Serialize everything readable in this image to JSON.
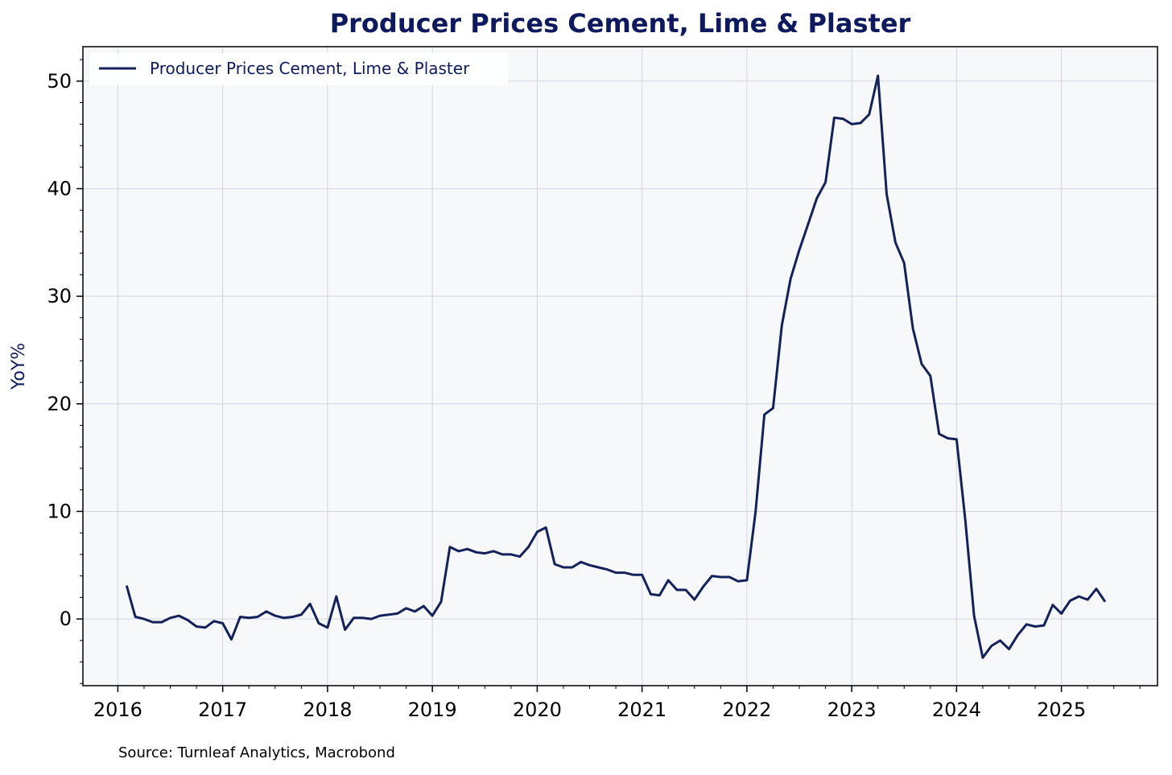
{
  "chart_data": {
    "type": "line",
    "title": "Producer Prices Cement, Lime & Plaster",
    "xlabel": "",
    "ylabel": "YoY%",
    "xlim": [
      "2015-09",
      "2025-12"
    ],
    "ylim": [
      -6.2,
      53.2
    ],
    "x_ticks": [
      "2016",
      "2017",
      "2018",
      "2019",
      "2020",
      "2021",
      "2022",
      "2023",
      "2024",
      "2025"
    ],
    "y_ticks": [
      0,
      10,
      20,
      30,
      40,
      50
    ],
    "grid": true,
    "legend_position": "top-left",
    "colors": {
      "line": "#14215a",
      "plot_bg": "#f6f8fa",
      "grid": "#d0d5e0",
      "title": "#0f1a5e",
      "legend_text": "#0f1a5e"
    },
    "series": [
      {
        "name": "Producer Prices Cement, Lime & Plaster",
        "x": [
          "2016-02",
          "2016-03",
          "2016-04",
          "2016-05",
          "2016-06",
          "2016-07",
          "2016-08",
          "2016-09",
          "2016-10",
          "2016-11",
          "2016-12",
          "2017-01",
          "2017-02",
          "2017-03",
          "2017-04",
          "2017-05",
          "2017-06",
          "2017-07",
          "2017-08",
          "2017-09",
          "2017-10",
          "2017-11",
          "2017-12",
          "2018-01",
          "2018-02",
          "2018-03",
          "2018-04",
          "2018-05",
          "2018-06",
          "2018-07",
          "2018-08",
          "2018-09",
          "2018-10",
          "2018-11",
          "2018-12",
          "2019-01",
          "2019-02",
          "2019-03",
          "2019-04",
          "2019-05",
          "2019-06",
          "2019-07",
          "2019-08",
          "2019-09",
          "2019-10",
          "2019-11",
          "2019-12",
          "2020-01",
          "2020-02",
          "2020-03",
          "2020-04",
          "2020-05",
          "2020-06",
          "2020-07",
          "2020-08",
          "2020-09",
          "2020-10",
          "2020-11",
          "2020-12",
          "2021-01",
          "2021-02",
          "2021-03",
          "2021-04",
          "2021-05",
          "2021-06",
          "2021-07",
          "2021-08",
          "2021-09",
          "2021-10",
          "2021-11",
          "2021-12",
          "2022-01",
          "2022-02",
          "2022-03",
          "2022-04",
          "2022-05",
          "2022-06",
          "2022-07",
          "2022-08",
          "2022-09",
          "2022-10",
          "2022-11",
          "2022-12",
          "2023-01",
          "2023-02",
          "2023-03",
          "2023-04",
          "2023-05",
          "2023-06",
          "2023-07",
          "2023-08",
          "2023-09",
          "2023-10",
          "2023-11",
          "2023-12",
          "2024-01",
          "2024-02",
          "2024-03",
          "2024-04",
          "2024-05",
          "2024-06",
          "2024-07",
          "2024-08",
          "2024-09",
          "2024-10",
          "2024-11",
          "2024-12",
          "2025-01",
          "2025-02",
          "2025-03",
          "2025-04",
          "2025-05",
          "2025-06"
        ],
        "values": [
          3.1,
          0.2,
          0.0,
          -0.3,
          -0.3,
          0.1,
          0.3,
          -0.1,
          -0.7,
          -0.8,
          -0.2,
          -0.4,
          -1.9,
          0.2,
          0.1,
          0.2,
          0.7,
          0.3,
          0.1,
          0.2,
          0.4,
          1.4,
          -0.4,
          -0.8,
          2.1,
          -1.0,
          0.1,
          0.1,
          0.0,
          0.3,
          0.4,
          0.5,
          1.0,
          0.7,
          1.2,
          0.3,
          1.6,
          6.7,
          6.3,
          6.5,
          6.2,
          6.1,
          6.3,
          6.0,
          6.0,
          5.8,
          6.7,
          8.1,
          8.5,
          5.1,
          4.8,
          4.8,
          5.3,
          5.0,
          4.8,
          4.6,
          4.3,
          4.3,
          4.1,
          4.1,
          2.3,
          2.2,
          3.6,
          2.7,
          2.7,
          1.8,
          3.0,
          4.0,
          3.9,
          3.9,
          3.5,
          3.6,
          10.0,
          19.0,
          19.6,
          27.3,
          31.6,
          34.3,
          36.7,
          39.1,
          40.6,
          46.6,
          46.5,
          46.0,
          46.1,
          46.9,
          50.5,
          39.5,
          35.0,
          33.1,
          27.0,
          23.7,
          22.6,
          17.2,
          16.8,
          16.7,
          9.2,
          0.3,
          -3.6,
          -2.5,
          -2.0,
          -2.8,
          -1.5,
          -0.5,
          -0.7,
          -0.6,
          1.3,
          0.5,
          1.7,
          2.1,
          1.8,
          2.8,
          1.6
        ]
      }
    ]
  },
  "source_note": "Source: Turnleaf Analytics, Macrobond"
}
